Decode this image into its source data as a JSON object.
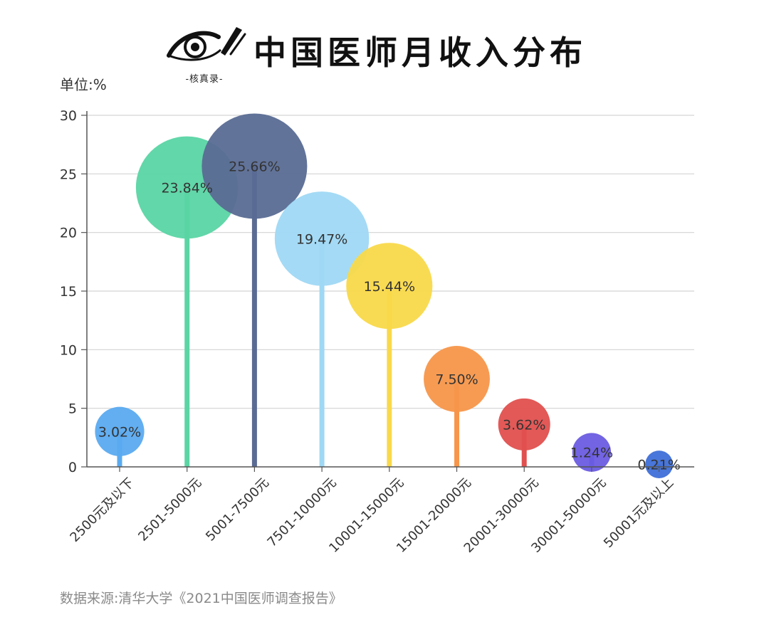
{
  "header": {
    "title": "中国医师月收入分布",
    "logo_text": "-核真录-"
  },
  "unit_label": "单位:%",
  "source": "数据来源:清华大学《2021中国医师调查报告》",
  "chart_data": {
    "type": "lollipop-bubble",
    "title": "中国医师月收入分布",
    "ylabel": "单位:%",
    "ylim": [
      0,
      30
    ],
    "yticks": [
      0,
      5,
      10,
      15,
      20,
      25,
      30
    ],
    "grid": true,
    "categories": [
      "2500元及以下",
      "2501-5000元",
      "5001-7500元",
      "7501-10000元",
      "10001-15000元",
      "15001-20000元",
      "20001-30000元",
      "30001-50000元",
      "50001元及以上"
    ],
    "values": [
      3.02,
      23.84,
      25.66,
      19.47,
      15.44,
      7.5,
      3.62,
      1.24,
      0.21
    ],
    "labels": [
      "3.02%",
      "23.84%",
      "25.66%",
      "19.47%",
      "15.44%",
      "7.50%",
      "3.62%",
      "1.24%",
      "0.21%"
    ],
    "colors": [
      "#5aaaf0",
      "#5ad5a4",
      "#5a6b93",
      "#9fd8f4",
      "#f9d94a",
      "#f7964a",
      "#e0504e",
      "#6a5ce0",
      "#3e6fd8"
    ]
  }
}
